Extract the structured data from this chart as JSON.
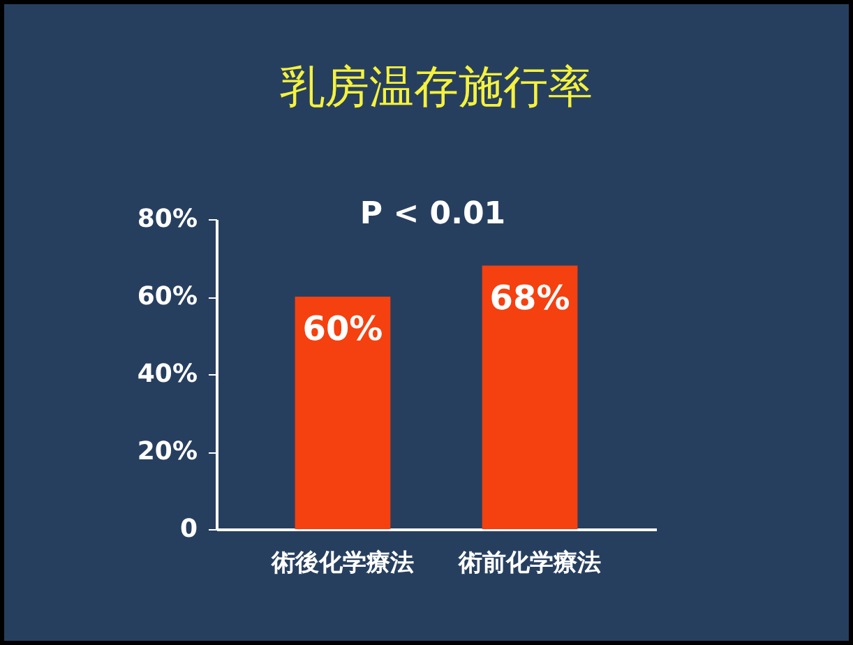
{
  "chart_data": {
    "type": "bar",
    "title": "乳房温存施行率",
    "categories": [
      "術後化学療法",
      "術前化学療法"
    ],
    "values": [
      60,
      68
    ],
    "color": "#f5400f",
    "value_labels": [
      "60%",
      "68%"
    ],
    "annotations": [
      "P < 0.01"
    ],
    "ylim": [
      0,
      80
    ],
    "yticks": [
      0,
      {
        "value": 20,
        "label": "20%"
      },
      {
        "value": 40,
        "label": "40%"
      },
      {
        "value": 60,
        "label": "60%"
      },
      {
        "value": 80,
        "label": "80%"
      }
    ],
    "grid": false
  }
}
